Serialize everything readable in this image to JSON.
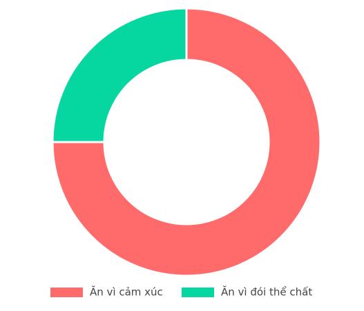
{
  "chart_data": {
    "type": "doughnut",
    "categories": [
      "Ăn vì cảm xúc",
      "Ăn vì đói thể chất"
    ],
    "values": [
      75,
      25
    ],
    "colors": [
      "#ff6b6b",
      "#06d6a0"
    ],
    "legend": "bottom"
  }
}
